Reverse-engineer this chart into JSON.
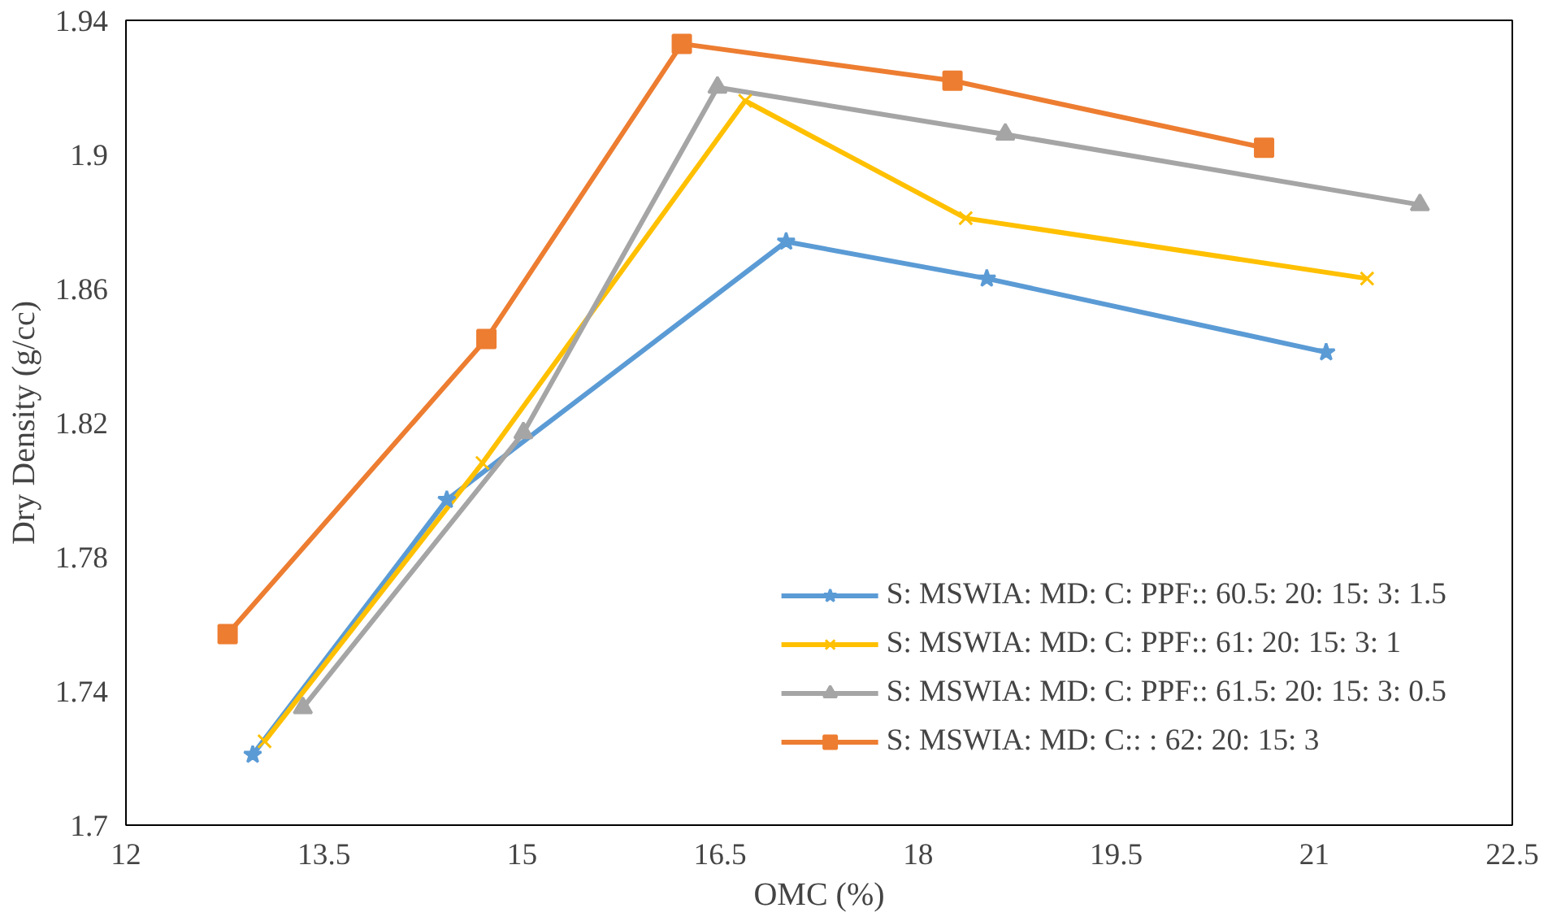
{
  "chart_data": {
    "type": "line",
    "xlabel": "OMC (%)",
    "ylabel": "Dry Density (g/cc)",
    "xlim": [
      12,
      22.5
    ],
    "xticks": [
      12,
      13.5,
      15,
      16.5,
      18,
      19.5,
      21,
      22.5
    ],
    "ylim": [
      1.7,
      1.94
    ],
    "yticks": [
      1.7,
      1.74,
      1.78,
      1.82,
      1.86,
      1.9,
      1.94
    ],
    "grid": false,
    "legend": "bottom right",
    "series": [
      {
        "name": "S: MSWIA: MD: C: PPF:: 60.5: 20: 15: 3: 1.5",
        "color": "#5b9bd5",
        "marker": "star",
        "x": [
          12.96,
          14.43,
          17.0,
          18.52,
          21.09
        ],
        "values": [
          1.721,
          1.797,
          1.874,
          1.863,
          1.841
        ]
      },
      {
        "name": "S: MSWIA: MD: C: PPF:: 61: 20: 15: 3: 1",
        "color": "#ffc000",
        "marker": "cross",
        "x": [
          13.05,
          14.7,
          16.69,
          18.36,
          21.4
        ],
        "values": [
          1.725,
          1.808,
          1.916,
          1.881,
          1.863
        ]
      },
      {
        "name": "S: MSWIA: MD: C: PPF:: 61.5: 20: 15: 3: 0.5",
        "color": "#a5a5a5",
        "marker": "triangle",
        "x": [
          13.34,
          15.01,
          16.48,
          18.66,
          21.8
        ],
        "values": [
          1.735,
          1.817,
          1.92,
          1.906,
          1.885
        ]
      },
      {
        "name": "S: MSWIA: MD: C:: : 62: 20: 15: 3",
        "color": "#ed7d31",
        "marker": "square",
        "x": [
          12.77,
          14.73,
          16.21,
          18.26,
          20.62
        ],
        "values": [
          1.757,
          1.845,
          1.933,
          1.922,
          1.902
        ]
      }
    ]
  }
}
